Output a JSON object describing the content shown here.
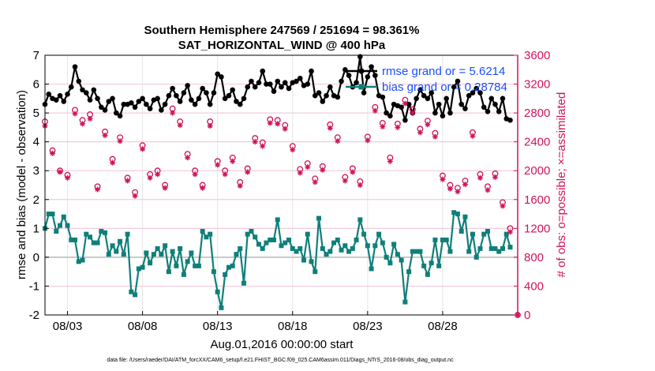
{
  "chart_data": {
    "type": "line",
    "title": "Southern Hemisphere 247569 / 251694 = 98.361%",
    "subtitle": "SAT_HORIZONTAL_WIND @ 400 hPa",
    "xlabel": "Aug.01,2016 00:00:00 start",
    "ylabel_left": "rmse and bias (model - observation)",
    "ylabel_right": "# of obs: o=possible; ×=assimilated",
    "footnote": "data file: /Users/raeder/DAI/ATM_forcXX/CAM6_setup/f.e21.FHIST_BGC.f09_025.CAM6assim.011/Diags_NTrS_2016-08/obs_diag_output.nc",
    "xlim": [
      1.5,
      33.0
    ],
    "ylim_left": [
      -2,
      7
    ],
    "ylim_right": [
      0,
      3600
    ],
    "x_ticks": [
      3,
      8,
      13,
      18,
      23,
      28
    ],
    "x_ticklabels": [
      "08/03",
      "08/08",
      "08/13",
      "08/18",
      "08/23",
      "08/28"
    ],
    "y_ticks_left": [
      -2,
      -1,
      0,
      1,
      2,
      3,
      4,
      5,
      6,
      7
    ],
    "y_ticks_right": [
      0,
      400,
      800,
      1200,
      1600,
      2000,
      2400,
      2800,
      3200,
      3600
    ],
    "grid": "on",
    "legend_position": "top-right",
    "colors": {
      "rmse": "#000000",
      "bias": "#0f7f7a",
      "obs": "#d0135a",
      "zero_line": "#c8c8c8",
      "legend_text": "#1a4fff"
    },
    "series": [
      {
        "name": "rmse grand or = 5.6214",
        "marker": "filled-circle",
        "axis": "left",
        "x": [
          1.5,
          1.75,
          2.0,
          2.25,
          2.5,
          2.75,
          3.0,
          3.25,
          3.5,
          3.75,
          4.0,
          4.25,
          4.5,
          4.75,
          5.0,
          5.25,
          5.5,
          5.75,
          6.0,
          6.25,
          6.5,
          6.75,
          7.0,
          7.25,
          7.5,
          7.75,
          8.0,
          8.25,
          8.5,
          8.75,
          9.0,
          9.25,
          9.5,
          9.75,
          10.0,
          10.25,
          10.5,
          10.75,
          11.0,
          11.25,
          11.5,
          11.75,
          12.0,
          12.25,
          12.5,
          12.75,
          13.0,
          13.25,
          13.5,
          13.75,
          14.0,
          14.25,
          14.5,
          14.75,
          15.0,
          15.25,
          15.5,
          15.75,
          16.0,
          16.25,
          16.5,
          16.75,
          17.0,
          17.25,
          17.5,
          17.75,
          18.0,
          18.25,
          18.5,
          18.75,
          19.0,
          19.25,
          19.5,
          19.75,
          20.0,
          20.25,
          20.5,
          20.75,
          21.0,
          21.25,
          21.5,
          21.75,
          22.0,
          22.25,
          22.5,
          22.75,
          23.0,
          23.25,
          23.5,
          23.75,
          24.0,
          24.25,
          24.5,
          24.75,
          25.0,
          25.25,
          25.5,
          25.75,
          26.0,
          26.25,
          26.5,
          26.75,
          27.0,
          27.25,
          27.5,
          27.75,
          28.0,
          28.25,
          28.5,
          28.75,
          29.0,
          29.25,
          29.5,
          29.75,
          30.0,
          30.25,
          30.5,
          30.75,
          31.0,
          31.25,
          31.5,
          31.75,
          32.0,
          32.25,
          32.5
        ],
        "values": [
          5.3,
          5.65,
          5.5,
          5.45,
          5.6,
          5.4,
          5.65,
          5.9,
          6.6,
          6.1,
          5.8,
          5.7,
          5.45,
          5.8,
          5.5,
          5.2,
          5.1,
          5.4,
          5.5,
          5.0,
          4.9,
          5.3,
          5.3,
          5.35,
          5.2,
          5.4,
          5.5,
          5.3,
          5.15,
          5.45,
          5.5,
          5.1,
          5.3,
          5.6,
          5.85,
          5.6,
          5.4,
          5.7,
          5.95,
          5.45,
          5.3,
          5.5,
          5.85,
          5.7,
          5.3,
          5.7,
          6.35,
          6.25,
          5.5,
          5.6,
          5.8,
          5.4,
          5.3,
          5.5,
          5.9,
          6.1,
          5.9,
          6.05,
          6.45,
          6.0,
          6.0,
          5.75,
          6.1,
          5.9,
          6.05,
          5.85,
          6.05,
          6.1,
          6.2,
          5.95,
          6.0,
          6.45,
          5.6,
          5.7,
          5.4,
          5.6,
          5.9,
          5.6,
          5.55,
          6.1,
          6.5,
          6.3,
          5.9,
          6.05,
          6.95,
          5.7,
          6.25,
          6.6,
          6.3,
          5.6,
          5.55,
          5.0,
          4.9,
          5.3,
          5.25,
          5.2,
          4.75,
          5.3,
          5.0,
          5.5,
          5.8,
          5.6,
          5.5,
          5.7,
          5.0,
          5.3,
          4.9,
          5.5,
          5.0,
          5.9,
          6.1,
          5.3,
          5.15,
          5.6,
          5.7,
          5.85,
          5.7,
          5.2,
          5.05,
          5.5,
          5.3,
          5.05,
          5.5,
          4.8,
          4.75
        ]
      },
      {
        "name": "bias grand or = 0.28784",
        "marker": "filled-square",
        "axis": "left",
        "x": [
          1.5,
          1.75,
          2.0,
          2.25,
          2.5,
          2.75,
          3.0,
          3.25,
          3.5,
          3.75,
          4.0,
          4.25,
          4.5,
          4.75,
          5.0,
          5.25,
          5.5,
          5.75,
          6.0,
          6.25,
          6.5,
          6.75,
          7.0,
          7.25,
          7.5,
          7.75,
          8.0,
          8.25,
          8.5,
          8.75,
          9.0,
          9.25,
          9.5,
          9.75,
          10.0,
          10.25,
          10.5,
          10.75,
          11.0,
          11.25,
          11.5,
          11.75,
          12.0,
          12.25,
          12.5,
          12.75,
          13.0,
          13.25,
          13.5,
          13.75,
          14.0,
          14.25,
          14.5,
          14.75,
          15.0,
          15.25,
          15.5,
          15.75,
          16.0,
          16.25,
          16.5,
          16.75,
          17.0,
          17.25,
          17.5,
          17.75,
          18.0,
          18.25,
          18.5,
          18.75,
          19.0,
          19.25,
          19.5,
          19.75,
          20.0,
          20.25,
          20.5,
          20.75,
          21.0,
          21.25,
          21.5,
          21.75,
          22.0,
          22.25,
          22.5,
          22.75,
          23.0,
          23.25,
          23.5,
          23.75,
          24.0,
          24.25,
          24.5,
          24.75,
          25.0,
          25.25,
          25.5,
          25.75,
          26.0,
          26.25,
          26.5,
          26.75,
          27.0,
          27.25,
          27.5,
          27.75,
          28.0,
          28.25,
          28.5,
          28.75,
          29.0,
          29.25,
          29.5,
          29.75,
          30.0,
          30.25,
          30.5,
          30.75,
          31.0,
          31.25,
          31.5,
          31.75,
          32.0,
          32.25,
          32.5
        ],
        "values": [
          1.0,
          1.5,
          1.5,
          0.9,
          1.1,
          1.4,
          1.1,
          0.6,
          0.6,
          -0.15,
          -0.1,
          0.8,
          0.7,
          0.5,
          0.5,
          0.9,
          0.85,
          0.1,
          0.4,
          0.2,
          0.55,
          0.1,
          0.8,
          -1.2,
          -1.3,
          -0.4,
          -0.35,
          0.15,
          -0.2,
          0.1,
          0.3,
          0.1,
          0.4,
          -0.5,
          0.2,
          -0.3,
          0.3,
          -0.6,
          -0.15,
          0.15,
          -0.3,
          -0.3,
          0.9,
          0.7,
          0.8,
          -0.5,
          -1.2,
          -1.75,
          -0.6,
          -0.35,
          -0.3,
          0.1,
          0.3,
          -0.9,
          0.8,
          0.9,
          0.7,
          0.45,
          0.3,
          0.5,
          0.6,
          0.6,
          1.3,
          0.4,
          0.5,
          0.6,
          0.3,
          0.2,
          0.3,
          -0.1,
          0.8,
          -0.15,
          -0.5,
          1.35,
          0.3,
          0.1,
          0.2,
          0.5,
          0.6,
          0.25,
          0.4,
          0.2,
          0.3,
          0.6,
          1.3,
          0.8,
          0.4,
          -0.4,
          0.4,
          0.8,
          0.5,
          0.0,
          -0.2,
          0.45,
          0.1,
          -0.1,
          -1.55,
          -0.5,
          0.2,
          0.2,
          0.2,
          -0.3,
          -0.6,
          -0.2,
          0.6,
          -0.3,
          0.6,
          0.6,
          0.2,
          1.55,
          1.5,
          0.9,
          1.4,
          0.2,
          0.8,
          0.0,
          0.3,
          0.8,
          0.9,
          0.3,
          0.3,
          0.2,
          0.3,
          0.8,
          0.35
        ]
      },
      {
        "name": "obs possible",
        "marker": "open-circle",
        "axis": "right",
        "x": [
          1.5,
          2.0,
          2.5,
          3.0,
          3.5,
          4.0,
          4.5,
          5.0,
          5.5,
          6.0,
          6.5,
          7.0,
          7.5,
          8.0,
          8.5,
          9.0,
          9.5,
          10.0,
          10.5,
          11.0,
          11.5,
          12.0,
          12.5,
          13.0,
          13.5,
          14.0,
          14.5,
          15.0,
          15.5,
          16.0,
          16.5,
          17.0,
          17.5,
          18.0,
          18.5,
          19.0,
          19.5,
          20.0,
          20.5,
          21.0,
          21.5,
          22.0,
          22.5,
          23.0,
          23.5,
          24.0,
          24.5,
          25.0,
          25.5,
          26.0,
          26.5,
          27.0,
          27.5,
          28.0,
          28.5,
          29.0,
          29.5,
          30.0,
          30.5,
          31.0,
          31.5,
          32.0,
          32.5,
          33.0
        ],
        "values": [
          2680,
          2280,
          2000,
          1940,
          2840,
          2700,
          2780,
          1780,
          2540,
          2160,
          2460,
          1900,
          1700,
          2350,
          1950,
          2000,
          1800,
          2860,
          2680,
          2230,
          2000,
          1800,
          2680,
          2130,
          2000,
          2180,
          1840,
          2030,
          2450,
          2390,
          2710,
          2700,
          2630,
          2340,
          2020,
          2100,
          1890,
          2060,
          2640,
          2460,
          1910,
          2030,
          1850,
          2470,
          2880,
          2660,
          2180,
          2650,
          2980,
          2850,
          2580,
          2690,
          2520,
          1930,
          1800,
          1760,
          1860,
          2530,
          1950,
          1780,
          1960,
          1560,
          1200,
          0
        ]
      },
      {
        "name": "obs assimilated",
        "marker": "asterisk",
        "axis": "right",
        "x": [
          1.5,
          2.0,
          2.5,
          3.0,
          3.5,
          4.0,
          4.5,
          5.0,
          5.5,
          6.0,
          6.5,
          7.0,
          7.5,
          8.0,
          8.5,
          9.0,
          9.5,
          10.0,
          10.5,
          11.0,
          11.5,
          12.0,
          12.5,
          13.0,
          13.5,
          14.0,
          14.5,
          15.0,
          15.5,
          16.0,
          16.5,
          17.0,
          17.5,
          18.0,
          18.5,
          19.0,
          19.5,
          20.0,
          20.5,
          21.0,
          21.5,
          22.0,
          22.5,
          23.0,
          23.5,
          24.0,
          24.5,
          25.0,
          25.5,
          26.0,
          26.5,
          27.0,
          27.5,
          28.0,
          28.5,
          29.0,
          29.5,
          30.0,
          30.5,
          31.0,
          31.5,
          32.0,
          32.5,
          33.0
        ],
        "values": [
          2620,
          2240,
          1980,
          1900,
          2790,
          2650,
          2720,
          1740,
          2490,
          2110,
          2410,
          1860,
          1650,
          2300,
          1900,
          1950,
          1760,
          2800,
          2630,
          2180,
          1950,
          1760,
          2620,
          2080,
          1950,
          2130,
          1790,
          1980,
          2400,
          2340,
          2660,
          2650,
          2580,
          2290,
          1970,
          2050,
          1840,
          2010,
          2590,
          2410,
          1860,
          1980,
          1800,
          2420,
          2830,
          2610,
          2130,
          2600,
          2930,
          2800,
          2530,
          2640,
          2470,
          1880,
          1750,
          1710,
          1810,
          2480,
          1900,
          1730,
          1910,
          1510,
          1150,
          0
        ]
      }
    ]
  }
}
